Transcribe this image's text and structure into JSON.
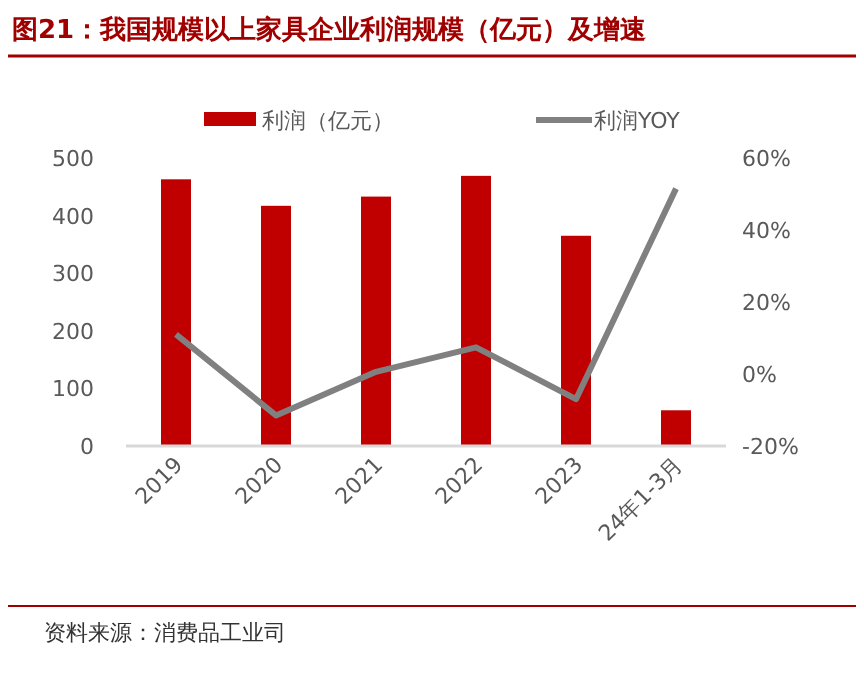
{
  "chart_data": {
    "type": "bar",
    "title": "图21：我国规模以上家具企业利润规模（亿元）及增速",
    "categories": [
      "2019",
      "2020",
      "2021",
      "2022",
      "2023",
      "24年1-3月"
    ],
    "series": [
      {
        "name": "利润（亿元）",
        "color": "#c00000",
        "values": [
          463,
          417,
          433,
          469,
          365,
          62
        ]
      },
      {
        "name": "利润YOY",
        "type": "line",
        "axis": "y2",
        "color": "#808080",
        "marker": "none",
        "line_style": "solid",
        "values": [
          11,
          -11.5,
          0.6,
          7.4,
          -7,
          51.5
        ]
      }
    ],
    "ylim": [
      0,
      500
    ],
    "yticks": [
      0,
      100,
      200,
      300,
      400,
      500
    ],
    "y2lim": [
      -20,
      60
    ],
    "y2ticks": [
      {
        "value": -20,
        "label": "-20%"
      },
      {
        "value": 0,
        "label": "0%"
      },
      {
        "value": 20,
        "label": "20%"
      },
      {
        "value": 40,
        "label": "40%"
      },
      {
        "value": 60,
        "label": "60%"
      }
    ],
    "grid": false,
    "legend": "top",
    "annotations": [
      "资料来源：消费品工业司"
    ]
  }
}
